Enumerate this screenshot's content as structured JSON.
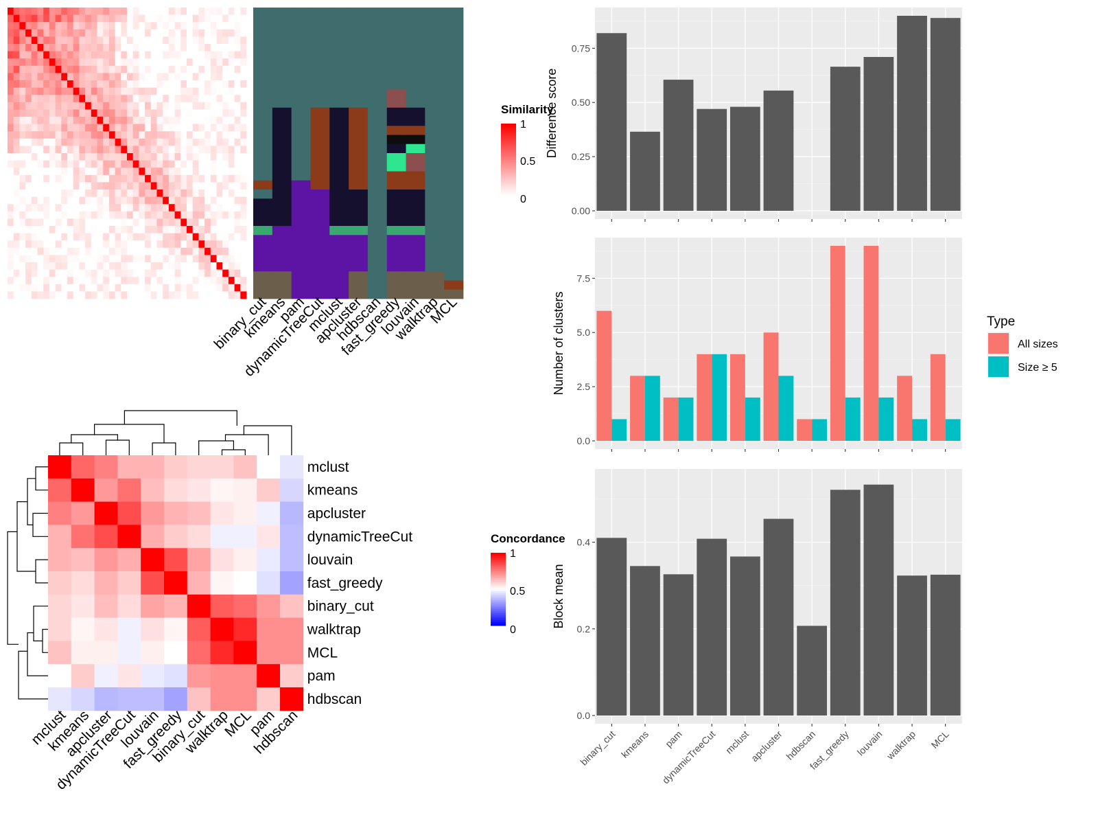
{
  "chart_data": [
    {
      "type": "heatmap",
      "name": "similarity",
      "legend_title": "Similarity",
      "legend_ticks": [
        "1",
        "0.5",
        "0"
      ],
      "n": 40,
      "colors": {
        "high": "#ff0000",
        "low": "#ffffff"
      }
    },
    {
      "type": "heatmap",
      "name": "cluster-membership",
      "columns": [
        "binary_cut",
        "kmeans",
        "pam",
        "dynamicTreeCut",
        "mclust",
        "apcluster",
        "hdbscan",
        "fast_greedy",
        "louvain",
        "walktrap",
        "MCL"
      ],
      "palette": {
        "A": "#3f6d6d",
        "B": "#15102e",
        "C": "#8b3a1a",
        "D": "#5d14a5",
        "E": "#6b5e4a",
        "F": "#2ee68f",
        "G": "#8c4e4e",
        "H": "#0d0d0d",
        "I": "#3aa970"
      }
    },
    {
      "type": "heatmap",
      "name": "concordance",
      "legend_title": "Concordance",
      "legend_ticks": [
        "1",
        "0.5",
        "0"
      ],
      "rows": [
        "mclust",
        "kmeans",
        "apcluster",
        "dynamicTreeCut",
        "louvain",
        "fast_greedy",
        "binary_cut",
        "walktrap",
        "MCL",
        "pam",
        "hdbscan"
      ],
      "columns": [
        "mclust",
        "kmeans",
        "apcluster",
        "dynamicTreeCut",
        "louvain",
        "fast_greedy",
        "binary_cut",
        "walktrap",
        "MCL",
        "pam",
        "hdbscan"
      ],
      "values": [
        [
          1.0,
          0.8,
          0.75,
          0.65,
          0.65,
          0.6,
          0.58,
          0.58,
          0.62,
          0.5,
          0.45
        ],
        [
          0.8,
          1.0,
          0.7,
          0.78,
          0.63,
          0.57,
          0.55,
          0.52,
          0.53,
          0.6,
          0.42
        ],
        [
          0.75,
          0.7,
          1.0,
          0.85,
          0.7,
          0.65,
          0.63,
          0.55,
          0.53,
          0.47,
          0.36
        ],
        [
          0.65,
          0.78,
          0.85,
          1.0,
          0.66,
          0.6,
          0.57,
          0.47,
          0.47,
          0.55,
          0.37
        ],
        [
          0.65,
          0.63,
          0.7,
          0.66,
          1.0,
          0.85,
          0.68,
          0.56,
          0.53,
          0.46,
          0.37
        ],
        [
          0.6,
          0.57,
          0.65,
          0.6,
          0.85,
          1.0,
          0.65,
          0.52,
          0.5,
          0.44,
          0.32
        ],
        [
          0.58,
          0.55,
          0.63,
          0.57,
          0.68,
          0.65,
          1.0,
          0.82,
          0.79,
          0.7,
          0.62
        ],
        [
          0.58,
          0.52,
          0.55,
          0.47,
          0.56,
          0.52,
          0.82,
          1.0,
          0.92,
          0.72,
          0.72
        ],
        [
          0.62,
          0.53,
          0.53,
          0.47,
          0.53,
          0.5,
          0.79,
          0.92,
          1.0,
          0.72,
          0.72
        ],
        [
          0.5,
          0.6,
          0.47,
          0.55,
          0.46,
          0.44,
          0.7,
          0.72,
          0.72,
          1.0,
          0.6
        ],
        [
          0.45,
          0.42,
          0.36,
          0.37,
          0.37,
          0.32,
          0.62,
          0.72,
          0.72,
          0.6,
          1.0
        ]
      ],
      "colors": {
        "high": "#ff0000",
        "mid": "#ffffff",
        "low": "#0000ff"
      }
    },
    {
      "type": "bar",
      "name": "difference-score",
      "categories": [
        "binary_cut",
        "kmeans",
        "pam",
        "dynamicTreeCut",
        "mclust",
        "apcluster",
        "hdbscan",
        "fast_greedy",
        "louvain",
        "walktrap",
        "MCL"
      ],
      "values": [
        0.82,
        0.365,
        0.605,
        0.47,
        0.48,
        0.555,
        null,
        0.665,
        0.71,
        0.9,
        0.89
      ],
      "ylabel": "Difference score",
      "ylim": [
        0,
        0.9
      ],
      "yticks": [
        "0.00",
        "0.25",
        "0.50",
        "0.75"
      ],
      "color": "#595959"
    },
    {
      "type": "bar",
      "name": "number-of-clusters",
      "categories": [
        "binary_cut",
        "kmeans",
        "pam",
        "dynamicTreeCut",
        "mclust",
        "apcluster",
        "hdbscan",
        "fast_greedy",
        "louvain",
        "walktrap",
        "MCL"
      ],
      "series": [
        {
          "name": "All sizes",
          "values": [
            6,
            3,
            2,
            4,
            4,
            5,
            1,
            9,
            9,
            3,
            4
          ],
          "color": "#f8766d"
        },
        {
          "name": "Size ≥ 5",
          "values": [
            1,
            3,
            2,
            4,
            2,
            3,
            1,
            2,
            2,
            1,
            1
          ],
          "color": "#00bfc4"
        }
      ],
      "ylabel": "Number of clusters",
      "ylim": [
        0,
        9
      ],
      "yticks": [
        "0.0",
        "2.5",
        "5.0",
        "7.5"
      ],
      "legend_title": "Type",
      "legend_position": "right"
    },
    {
      "type": "bar",
      "name": "block-mean",
      "categories": [
        "binary_cut",
        "kmeans",
        "pam",
        "dynamicTreeCut",
        "mclust",
        "apcluster",
        "hdbscan",
        "fast_greedy",
        "louvain",
        "walktrap",
        "MCL"
      ],
      "values": [
        0.41,
        0.345,
        0.326,
        0.408,
        0.367,
        0.454,
        0.207,
        0.521,
        0.533,
        0.323,
        0.325
      ],
      "ylabel": "Block mean",
      "ylim": [
        0,
        0.55
      ],
      "yticks": [
        "0.0",
        "0.2",
        "0.4"
      ],
      "color": "#595959"
    }
  ]
}
